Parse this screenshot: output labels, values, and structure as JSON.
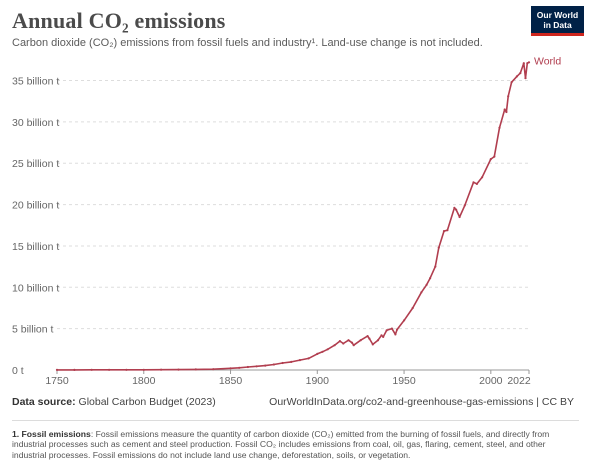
{
  "header": {
    "title": "Annual CO₂ emissions",
    "subtitle": "Carbon dioxide (CO₂) emissions from fossil fuels and industry¹. Land-use change is not included."
  },
  "logo": {
    "line1": "Our World",
    "line2": "in Data",
    "bg_color": "#002147",
    "accent_color": "#ce261e"
  },
  "chart_data": {
    "type": "line",
    "title": "Annual CO₂ emissions",
    "xlabel": "",
    "ylabel": "",
    "xlim": [
      1750,
      2022
    ],
    "ylim": [
      0,
      37
    ],
    "y_ticks": [
      0,
      5,
      10,
      15,
      20,
      25,
      30,
      35
    ],
    "y_tick_labels": [
      "0 t",
      "5 billion t",
      "10 billion t",
      "15 billion t",
      "20 billion t",
      "25 billion t",
      "30 billion t",
      "35 billion t"
    ],
    "x_ticks": [
      1750,
      1800,
      1850,
      1900,
      1950,
      2000,
      2022
    ],
    "x_tick_labels": [
      "1750",
      "1800",
      "1850",
      "1900",
      "1950",
      "2000",
      "2022"
    ],
    "grid": "horizontal dashed",
    "legend": "line end label",
    "series": [
      {
        "name": "World",
        "color": "#b13e4f",
        "x": [
          1750,
          1760,
          1770,
          1780,
          1790,
          1800,
          1810,
          1820,
          1830,
          1840,
          1850,
          1855,
          1860,
          1865,
          1870,
          1875,
          1880,
          1885,
          1890,
          1895,
          1900,
          1903,
          1906,
          1910,
          1913,
          1915,
          1918,
          1920,
          1921,
          1925,
          1929,
          1930,
          1932,
          1935,
          1937,
          1938,
          1940,
          1943,
          1945,
          1946,
          1950,
          1955,
          1960,
          1963,
          1965,
          1968,
          1970,
          1973,
          1975,
          1979,
          1980,
          1982,
          1985,
          1990,
          1992,
          1995,
          2000,
          2002,
          2005,
          2008,
          2009,
          2010,
          2012,
          2015,
          2017,
          2019,
          2020,
          2021,
          2022
        ],
        "y": [
          0.01,
          0.01,
          0.02,
          0.02,
          0.03,
          0.03,
          0.04,
          0.05,
          0.07,
          0.1,
          0.2,
          0.27,
          0.36,
          0.45,
          0.53,
          0.67,
          0.85,
          0.98,
          1.2,
          1.4,
          1.95,
          2.2,
          2.5,
          3.0,
          3.5,
          3.2,
          3.6,
          3.3,
          3.0,
          3.6,
          4.1,
          3.8,
          3.1,
          3.6,
          4.2,
          4.0,
          4.8,
          5.0,
          4.3,
          4.9,
          6.0,
          7.5,
          9.4,
          10.3,
          11.1,
          12.5,
          14.8,
          16.8,
          16.9,
          19.6,
          19.4,
          18.5,
          19.9,
          22.7,
          22.5,
          23.3,
          25.5,
          25.8,
          29.3,
          31.5,
          31.2,
          33.1,
          34.8,
          35.5,
          35.9,
          37.1,
          35.3,
          37.1,
          37.2
        ]
      }
    ]
  },
  "source": {
    "label": "Data source:",
    "value": "Global Carbon Budget (2023)",
    "url_text": "OurWorldInData.org/co2-and-greenhouse-gas-emissions | CC BY"
  },
  "footnote": {
    "label": "1. Fossil emissions",
    "text": ": Fossil emissions measure the quantity of carbon dioxide (CO₂) emitted from the burning of fossil fuels, and directly from industrial processes such as cement and steel production. Fossil CO₂ includes emissions from coal, oil, gas, flaring, cement, steel, and other industrial processes. Fossil emissions do not include land use change, deforestation, soils, or vegetation."
  }
}
